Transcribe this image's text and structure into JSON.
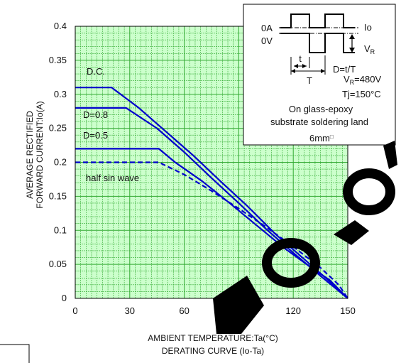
{
  "colors": {
    "plot_bg": "#ccffcc",
    "grid": "#33aa33",
    "curve": "#0000cc"
  },
  "chart_data": {
    "type": "line",
    "xlabel": "AMBIENT TEMPERATURE:Ta(°C)",
    "ylabel_line1": "AVERAGE RECTIFIED",
    "ylabel_line2": "FORWARD CURRENT:Io(A)",
    "caption": "DERATING  CURVE (Io-Ta)",
    "xlim": [
      0,
      150
    ],
    "ylim": [
      0,
      0.4
    ],
    "x_ticks": [
      "0",
      "30",
      "60",
      "90",
      "120",
      "150"
    ],
    "y_ticks": [
      "0",
      "0.05",
      "0.1",
      "0.15",
      "0.2",
      "0.25",
      "0.3",
      "0.35",
      "0.4"
    ],
    "grid": true,
    "series": [
      {
        "name": "D.C.",
        "style": "solid",
        "x": [
          0,
          20,
          35,
          50,
          65,
          80,
          95,
          110,
          125,
          140,
          150
        ],
        "y": [
          0.31,
          0.31,
          0.28,
          0.245,
          0.21,
          0.172,
          0.135,
          0.095,
          0.06,
          0.025,
          0
        ]
      },
      {
        "name": "D=0.8",
        "style": "solid",
        "x": [
          0,
          28,
          45,
          60,
          75,
          90,
          105,
          120,
          135,
          150
        ],
        "y": [
          0.28,
          0.28,
          0.25,
          0.215,
          0.177,
          0.14,
          0.102,
          0.067,
          0.033,
          0
        ]
      },
      {
        "name": "D=0.5",
        "style": "solid",
        "x": [
          0,
          46,
          55,
          70,
          85,
          100,
          115,
          130,
          140,
          150
        ],
        "y": [
          0.22,
          0.22,
          0.2,
          0.172,
          0.14,
          0.107,
          0.074,
          0.045,
          0.027,
          0
        ]
      },
      {
        "name": "half sin wave",
        "style": "dashed",
        "x": [
          0,
          46,
          60,
          75,
          90,
          105,
          120,
          135,
          145,
          150
        ],
        "y": [
          0.2,
          0.2,
          0.182,
          0.158,
          0.132,
          0.105,
          0.076,
          0.045,
          0.02,
          0
        ]
      }
    ],
    "series_labels": [
      "D.C.",
      "D=0.8",
      "D=0.5",
      "half sin wave"
    ],
    "inset": {
      "io": "Io",
      "zero_a": "0A",
      "zero_v": "0V",
      "vr": "V",
      "vr_sub": "R",
      "t_small": "t",
      "t_big": "T",
      "duty": "D=t/T",
      "vr_eq": "V",
      "vr_eq_sub": "R",
      "vr_eq_val": "=480V",
      "tj": "Tj=150°C",
      "cond1": "On glass-epoxy",
      "cond2": "substrate soldering land",
      "cond3": "6mm",
      "cond3_mark": "□"
    }
  }
}
